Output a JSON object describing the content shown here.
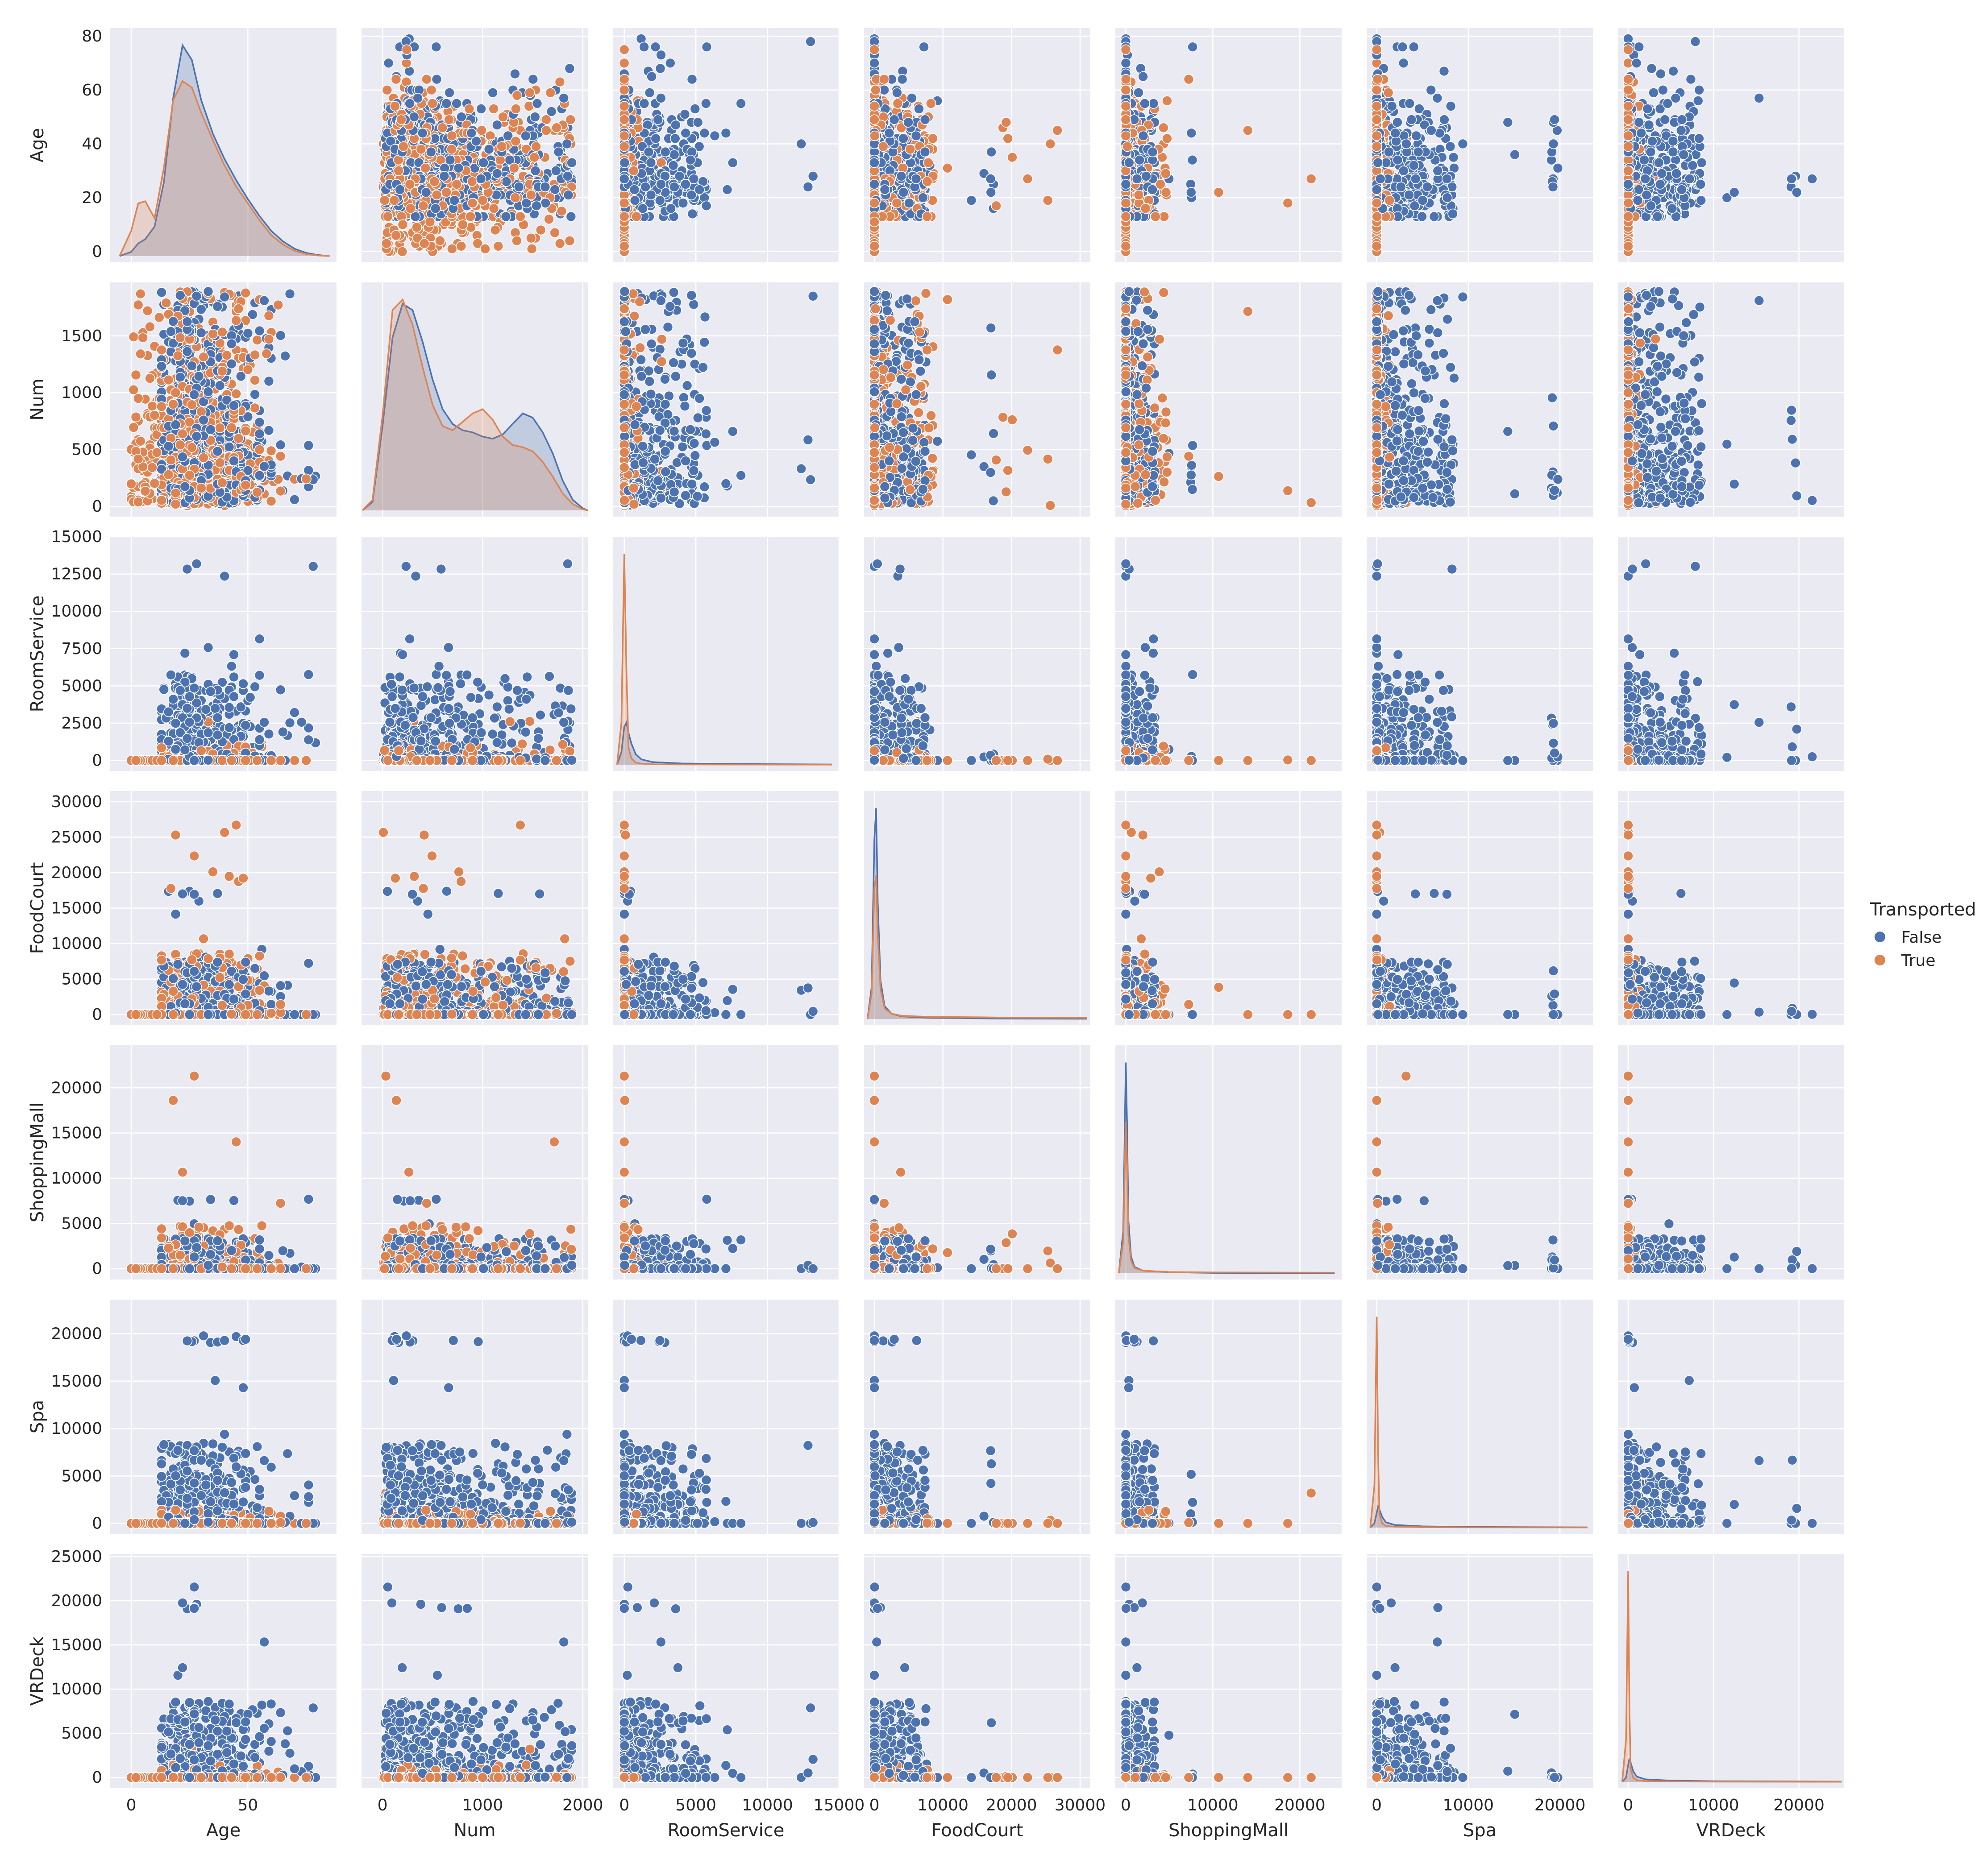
{
  "chart_data": {
    "type": "scatter",
    "chart_kind": "pairplot",
    "variables": [
      "Age",
      "Num",
      "RoomService",
      "FoodCourt",
      "ShoppingMall",
      "Spa",
      "VRDeck"
    ],
    "hue": "Transported",
    "legend": {
      "title": "Transported",
      "placement": "right",
      "entries": [
        {
          "label": "False",
          "color": "#4c72b0"
        },
        {
          "label": "True",
          "color": "#dd8452"
        }
      ]
    },
    "background_color": "#eaeaf2",
    "grid": true,
    "x_axes": [
      {
        "label": "Age",
        "ticks": [
          0,
          50
        ],
        "lim": [
          -9,
          88
        ]
      },
      {
        "label": "Num",
        "ticks": [
          0,
          1000,
          2000
        ],
        "lim": [
          -210,
          2050
        ]
      },
      {
        "label": "RoomService",
        "ticks": [
          0,
          5000,
          10000,
          15000
        ],
        "lim": [
          -800,
          15000
        ]
      },
      {
        "label": "FoodCourt",
        "ticks": [
          0,
          10000,
          20000,
          30000
        ],
        "lim": [
          -1500,
          31500
        ]
      },
      {
        "label": "ShoppingMall",
        "ticks": [
          0,
          10000,
          20000
        ],
        "lim": [
          -1200,
          24800
        ]
      },
      {
        "label": "Spa",
        "ticks": [
          0,
          10000,
          20000
        ],
        "lim": [
          -1100,
          23600
        ]
      },
      {
        "label": "VRDeck",
        "ticks": [
          0,
          10000,
          20000
        ],
        "lim": [
          -1200,
          25300
        ]
      }
    ],
    "y_axes": [
      {
        "label": "Age",
        "ticks": [
          0,
          20,
          40,
          60,
          80
        ],
        "lim": [
          -4,
          83
        ]
      },
      {
        "label": "Num",
        "ticks": [
          0,
          500,
          1000,
          1500
        ],
        "lim": [
          -90,
          1970
        ]
      },
      {
        "label": "RoomService",
        "ticks": [
          0,
          2500,
          5000,
          7500,
          10000,
          12500,
          15000
        ],
        "lim": [
          -700,
          15000
        ]
      },
      {
        "label": "FoodCourt",
        "ticks": [
          0,
          5000,
          10000,
          15000,
          20000,
          25000,
          30000
        ],
        "lim": [
          -1500,
          31500
        ]
      },
      {
        "label": "ShoppingMall",
        "ticks": [
          0,
          5000,
          10000,
          15000,
          20000
        ],
        "lim": [
          -1200,
          24700
        ]
      },
      {
        "label": "Spa",
        "ticks": [
          0,
          5000,
          10000,
          15000,
          20000
        ],
        "lim": [
          -1100,
          23600
        ]
      },
      {
        "label": "VRDeck",
        "ticks": [
          0,
          5000,
          10000,
          15000,
          20000,
          25000
        ],
        "lim": [
          -1200,
          25300
        ]
      }
    ],
    "diagonal_kde": [
      {
        "variable": "Age",
        "x": [
          -5,
          0,
          3,
          6,
          10,
          14,
          18,
          22,
          26,
          30,
          35,
          40,
          45,
          50,
          55,
          60,
          65,
          70,
          75,
          80,
          85
        ],
        "False": [
          0,
          0.02,
          0.06,
          0.08,
          0.14,
          0.35,
          0.75,
          1.0,
          0.93,
          0.74,
          0.58,
          0.46,
          0.36,
          0.27,
          0.19,
          0.12,
          0.07,
          0.035,
          0.015,
          0.005,
          0
        ],
        "True": [
          0,
          0.12,
          0.25,
          0.26,
          0.18,
          0.42,
          0.74,
          0.83,
          0.8,
          0.68,
          0.55,
          0.43,
          0.33,
          0.25,
          0.17,
          0.1,
          0.055,
          0.025,
          0.01,
          0.003,
          0
        ]
      },
      {
        "variable": "Num",
        "x": [
          -200,
          -100,
          0,
          100,
          200,
          300,
          400,
          500,
          600,
          700,
          800,
          900,
          1000,
          1100,
          1200,
          1300,
          1400,
          1500,
          1600,
          1700,
          1800,
          1900,
          2000,
          2050
        ],
        "False": [
          0,
          0.04,
          0.4,
          0.82,
          0.98,
          0.95,
          0.8,
          0.62,
          0.48,
          0.41,
          0.38,
          0.37,
          0.35,
          0.34,
          0.36,
          0.41,
          0.46,
          0.44,
          0.37,
          0.27,
          0.14,
          0.05,
          0.01,
          0
        ],
        "True": [
          0,
          0.05,
          0.45,
          0.95,
          1.0,
          0.88,
          0.68,
          0.5,
          0.4,
          0.38,
          0.42,
          0.46,
          0.48,
          0.43,
          0.35,
          0.31,
          0.3,
          0.28,
          0.23,
          0.16,
          0.08,
          0.03,
          0.005,
          0
        ]
      },
      {
        "variable": "RoomService",
        "x": [
          -500,
          -200,
          0,
          150,
          300,
          500,
          800,
          1200,
          2000,
          4000,
          8000,
          14500
        ],
        "False": [
          0,
          0.06,
          0.18,
          0.2,
          0.15,
          0.1,
          0.05,
          0.025,
          0.012,
          0.006,
          0.003,
          0.001
        ],
        "True": [
          0,
          0.2,
          1.0,
          0.45,
          0.08,
          0.03,
          0.01,
          0.005,
          0.002,
          0.001,
          0.0005,
          0.0002
        ]
      },
      {
        "variable": "FoodCourt",
        "x": [
          -1000,
          -400,
          0,
          250,
          500,
          900,
          1500,
          2500,
          4000,
          8000,
          16000,
          18000,
          31000
        ],
        "False": [
          0,
          0.15,
          0.85,
          1.0,
          0.55,
          0.18,
          0.06,
          0.025,
          0.012,
          0.006,
          0.003,
          0.002,
          0.001
        ],
        "True": [
          0,
          0.12,
          0.62,
          0.68,
          0.4,
          0.14,
          0.05,
          0.025,
          0.015,
          0.01,
          0.008,
          0.007,
          0.006
        ]
      },
      {
        "variable": "ShoppingMall",
        "x": [
          -800,
          -300,
          0,
          150,
          300,
          600,
          1000,
          2000,
          5000,
          10000,
          24000
        ],
        "False": [
          0,
          0.2,
          1.0,
          0.7,
          0.25,
          0.08,
          0.03,
          0.012,
          0.005,
          0.002,
          0.001
        ],
        "True": [
          0,
          0.15,
          0.72,
          0.5,
          0.18,
          0.06,
          0.025,
          0.012,
          0.006,
          0.004,
          0.003
        ]
      },
      {
        "variable": "Spa",
        "x": [
          -700,
          -250,
          0,
          150,
          300,
          600,
          1000,
          2000,
          5000,
          10000,
          23000
        ],
        "False": [
          0,
          0.02,
          0.07,
          0.1,
          0.085,
          0.05,
          0.025,
          0.012,
          0.006,
          0.003,
          0.001
        ],
        "True": [
          0,
          0.2,
          1.0,
          0.35,
          0.06,
          0.02,
          0.008,
          0.004,
          0.002,
          0.001,
          0.0005
        ]
      },
      {
        "variable": "VRDeck",
        "x": [
          -700,
          -250,
          0,
          150,
          300,
          600,
          1000,
          2000,
          5000,
          10000,
          25000
        ],
        "False": [
          0,
          0.02,
          0.08,
          0.11,
          0.09,
          0.05,
          0.025,
          0.012,
          0.006,
          0.003,
          0.001
        ],
        "True": [
          0,
          0.2,
          1.0,
          0.35,
          0.06,
          0.02,
          0.008,
          0.004,
          0.002,
          0.001,
          0.0005
        ]
      }
    ]
  }
}
